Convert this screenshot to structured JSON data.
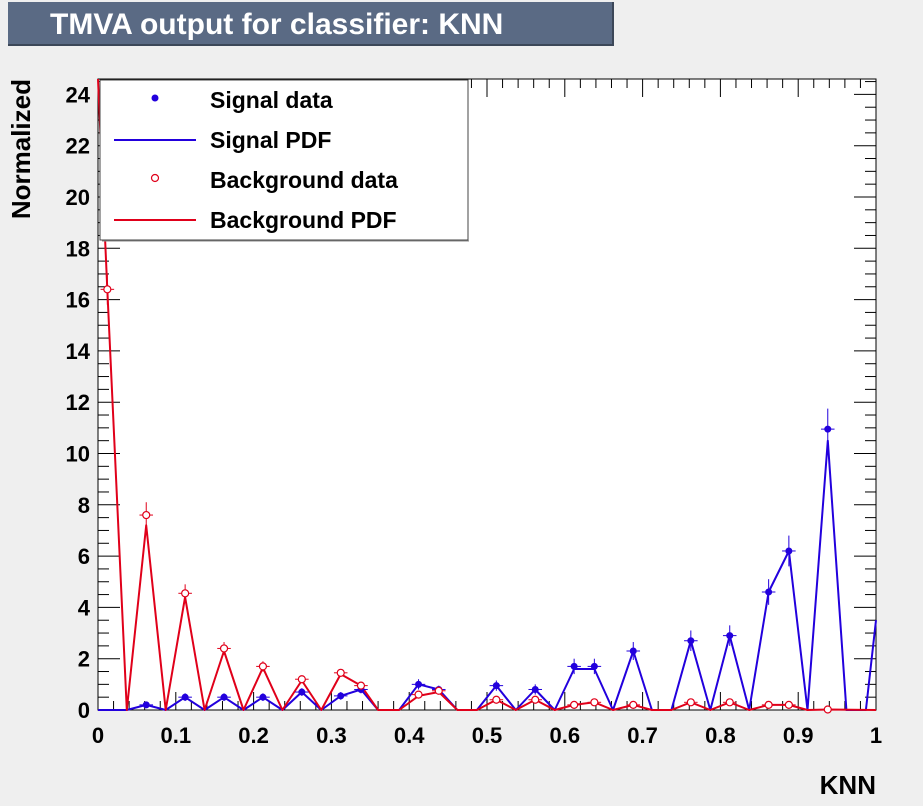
{
  "title": "TMVA output for classifier: KNN",
  "chart_data": {
    "type": "line",
    "xlabel": "KNN",
    "ylabel": "Normalized",
    "xlim": [
      0,
      1
    ],
    "ylim": [
      0,
      24.6
    ],
    "x_ticks": [
      "0",
      "0.1",
      "0.2",
      "0.3",
      "0.4",
      "0.5",
      "0.6",
      "0.7",
      "0.8",
      "0.9",
      "1"
    ],
    "y_ticks": [
      "0",
      "2",
      "4",
      "6",
      "8",
      "10",
      "12",
      "14",
      "16",
      "18",
      "20",
      "22",
      "24"
    ],
    "legend": {
      "placement": "top-left",
      "entries": [
        "Signal data",
        "Signal PDF",
        "Background data",
        "Background PDF"
      ]
    },
    "colors": {
      "signal": "#2200dd",
      "background": "#e0001a"
    },
    "series": [
      {
        "name": "Signal data",
        "style": "markers",
        "x": [
          0.062,
          0.112,
          0.162,
          0.212,
          0.262,
          0.312,
          0.338,
          0.412,
          0.438,
          0.512,
          0.562,
          0.612,
          0.638,
          0.688,
          0.762,
          0.812,
          0.862,
          0.888,
          0.938
        ],
        "y": [
          0.2,
          0.5,
          0.5,
          0.5,
          0.7,
          0.55,
          0.8,
          1.0,
          0.8,
          0.95,
          0.8,
          1.7,
          1.7,
          2.3,
          2.7,
          2.9,
          4.6,
          6.2,
          10.95
        ],
        "err": [
          0.1,
          0.15,
          0.15,
          0.15,
          0.15,
          0.15,
          0.15,
          0.2,
          0.15,
          0.2,
          0.2,
          0.3,
          0.3,
          0.35,
          0.4,
          0.4,
          0.5,
          0.6,
          0.8
        ]
      },
      {
        "name": "Signal PDF",
        "style": "line",
        "x": [
          0,
          0.037,
          0.062,
          0.087,
          0.112,
          0.137,
          0.162,
          0.187,
          0.212,
          0.237,
          0.262,
          0.287,
          0.312,
          0.338,
          0.36,
          0.387,
          0.412,
          0.438,
          0.462,
          0.487,
          0.512,
          0.537,
          0.562,
          0.587,
          0.612,
          0.638,
          0.662,
          0.688,
          0.712,
          0.737,
          0.762,
          0.787,
          0.812,
          0.837,
          0.862,
          0.888,
          0.912,
          0.938,
          0.962,
          0.987,
          1.0
        ],
        "y": [
          0,
          0,
          0.2,
          0,
          0.5,
          0,
          0.5,
          0,
          0.5,
          0,
          0.7,
          0,
          0.55,
          0.8,
          0,
          0,
          1.0,
          0.8,
          0,
          0,
          0.95,
          0,
          0.8,
          0,
          1.6,
          1.6,
          0,
          2.3,
          0,
          0,
          2.7,
          0,
          2.9,
          0,
          4.6,
          6.2,
          0,
          10.5,
          0,
          0,
          3.5
        ]
      },
      {
        "name": "Background data",
        "style": "markers",
        "x": [
          0.012,
          0.062,
          0.112,
          0.162,
          0.212,
          0.262,
          0.312,
          0.338,
          0.412,
          0.438,
          0.512,
          0.562,
          0.612,
          0.638,
          0.688,
          0.762,
          0.812,
          0.862,
          0.888,
          0.938
        ],
        "y": [
          16.4,
          7.6,
          4.55,
          2.4,
          1.7,
          1.2,
          1.45,
          0.95,
          0.6,
          0.75,
          0.4,
          0.4,
          0.2,
          0.3,
          0.2,
          0.3,
          0.3,
          0.2,
          0.2,
          0.02
        ],
        "err": [
          0.6,
          0.5,
          0.35,
          0.25,
          0.2,
          0.15,
          0.15,
          0.15,
          0.1,
          0.1,
          0.08,
          0.08,
          0.06,
          0.06,
          0.06,
          0.06,
          0.06,
          0.05,
          0.05,
          0.05
        ]
      },
      {
        "name": "Background PDF",
        "style": "line",
        "x": [
          0,
          0.012,
          0.037,
          0.062,
          0.087,
          0.112,
          0.137,
          0.162,
          0.187,
          0.212,
          0.237,
          0.262,
          0.287,
          0.312,
          0.338,
          0.36,
          0.387,
          0.412,
          0.438,
          0.462,
          0.487,
          0.512,
          0.537,
          0.562,
          0.587,
          0.612,
          0.638,
          0.662,
          0.688,
          0.712,
          0.737,
          0.762,
          0.787,
          0.812,
          0.837,
          0.862,
          0.888,
          0.912,
          0.938,
          1.0
        ],
        "y": [
          24.6,
          16.4,
          0,
          7.2,
          0,
          4.4,
          0,
          2.3,
          0,
          1.65,
          0,
          1.15,
          0,
          1.4,
          0.95,
          0,
          0,
          0.55,
          0.7,
          0,
          0,
          0.4,
          0,
          0.4,
          0,
          0.2,
          0.3,
          0,
          0.2,
          0,
          0,
          0.3,
          0,
          0.3,
          0,
          0.2,
          0.2,
          0,
          0.02,
          0
        ]
      }
    ]
  }
}
